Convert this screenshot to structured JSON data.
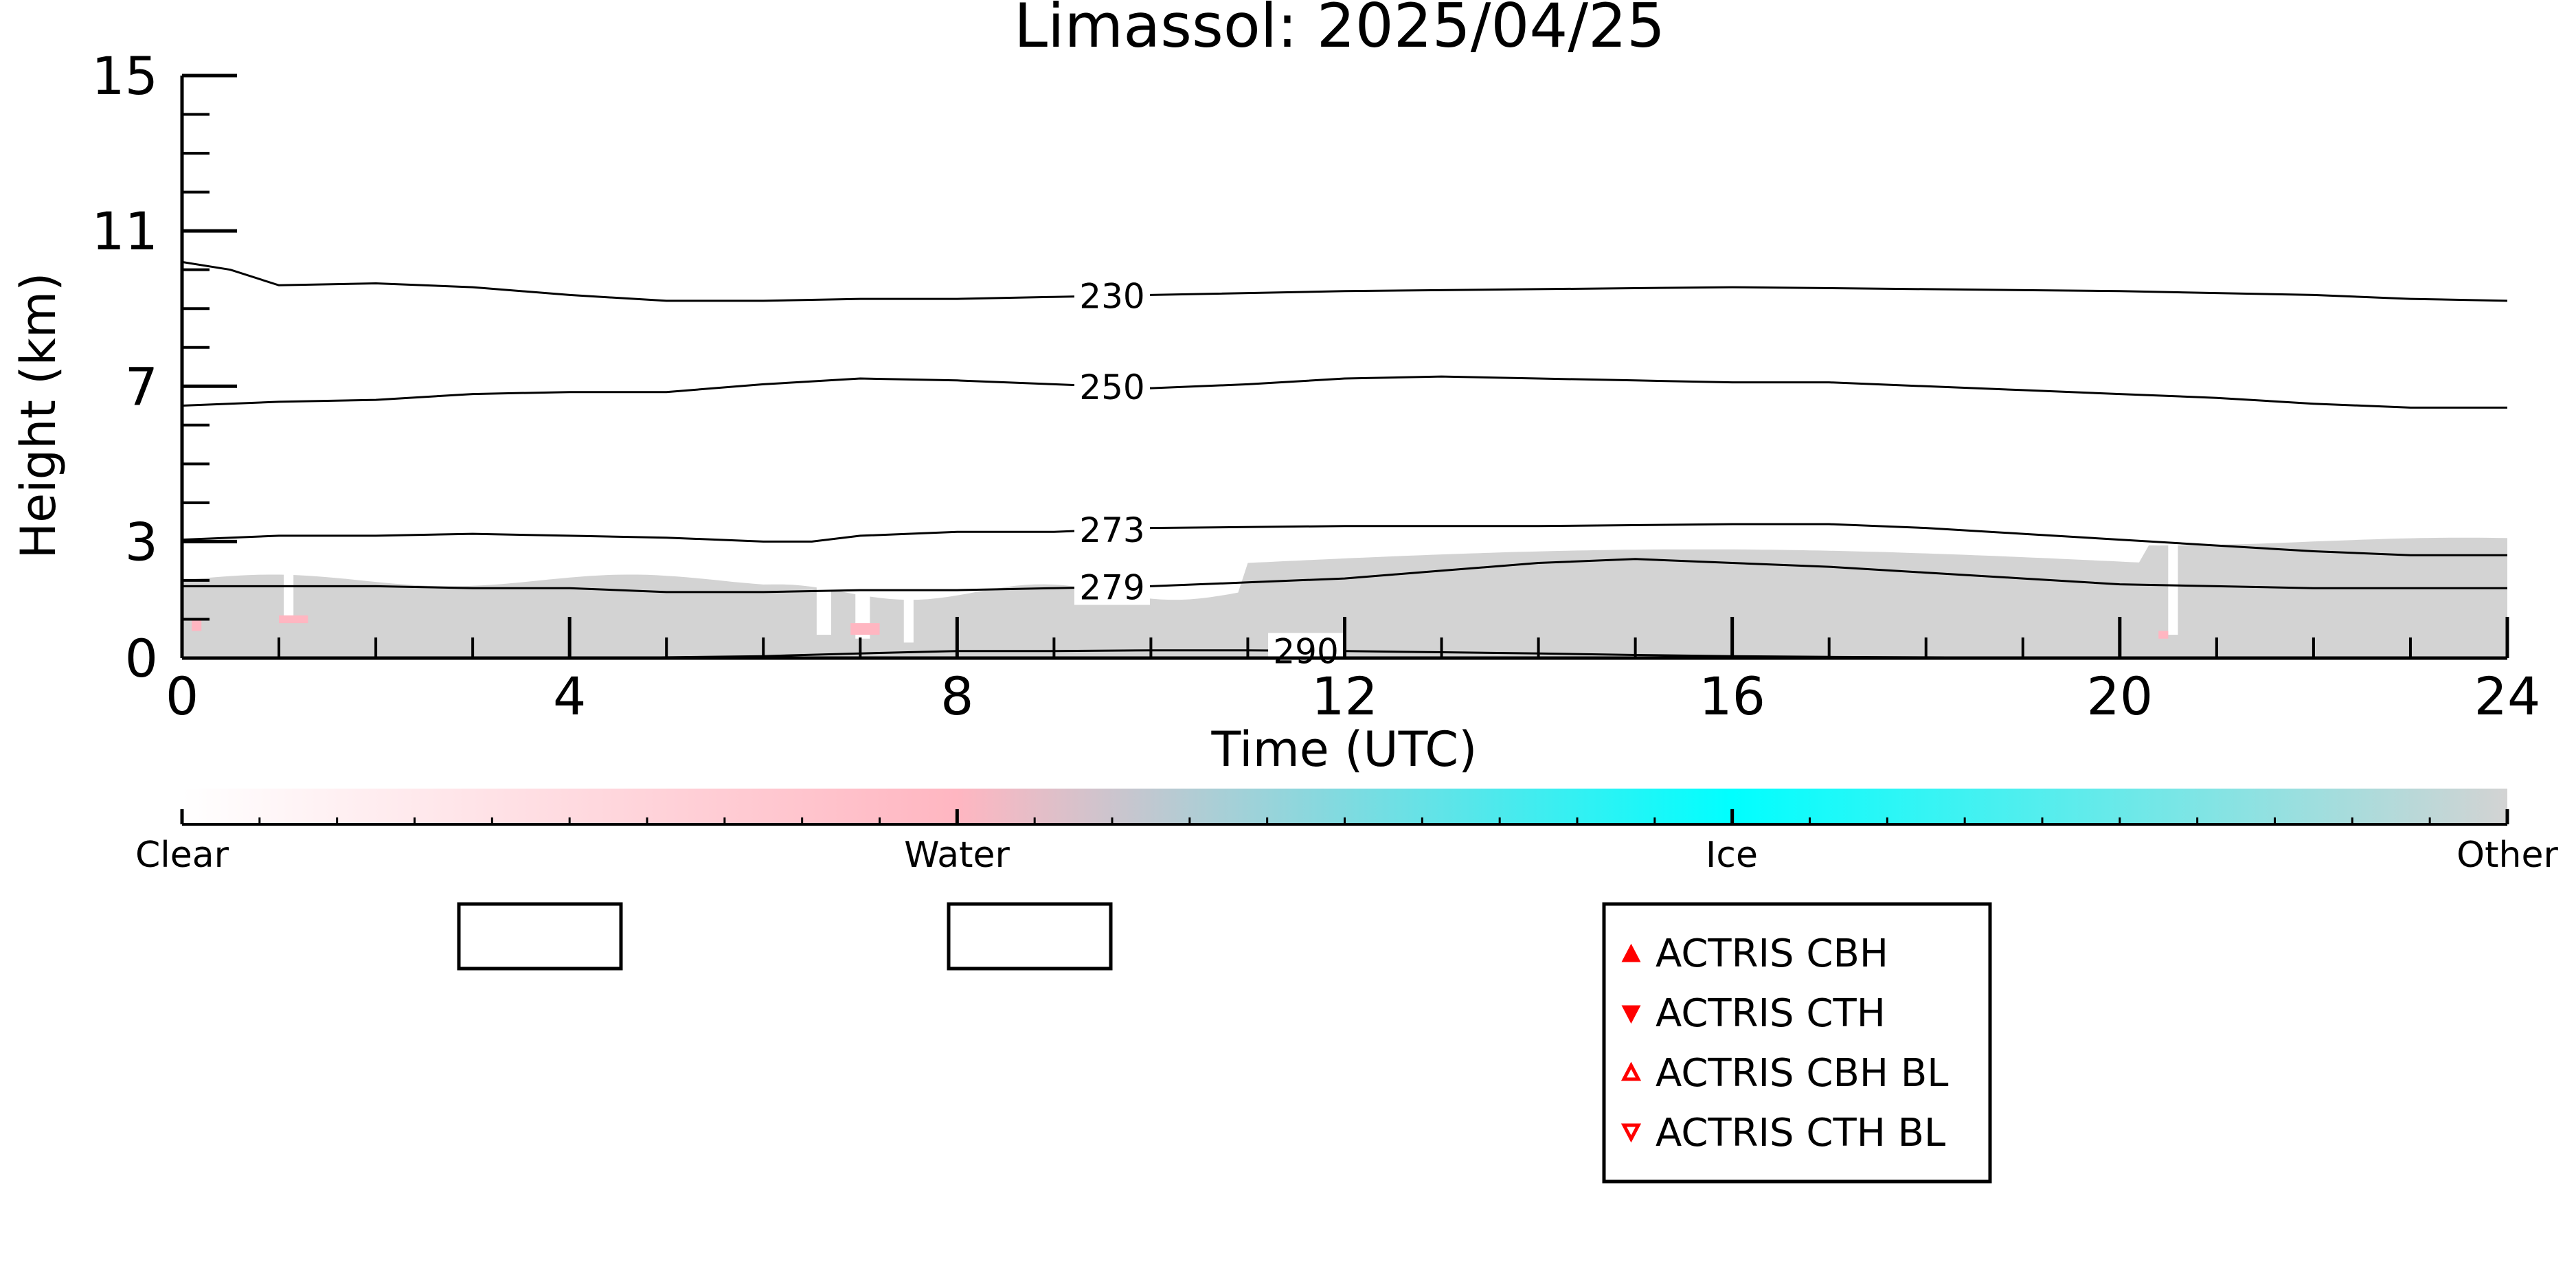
{
  "chart_data": {
    "type": "heatmap",
    "title": "Limassol: 2025/04/25",
    "xlabel": "Time (UTC)",
    "ylabel": "Height (km)",
    "xlim": [
      0,
      24
    ],
    "ylim": [
      0,
      15
    ],
    "x_ticks": [
      0,
      4,
      8,
      12,
      16,
      20,
      24
    ],
    "y_ticks": [
      0,
      3,
      7,
      11,
      15
    ],
    "grid": false,
    "temperature_contours": [
      {
        "label": "230",
        "label_x": 9.6,
        "points": [
          [
            0,
            10.2
          ],
          [
            0.5,
            10.0
          ],
          [
            1,
            9.6
          ],
          [
            2,
            9.65
          ],
          [
            3,
            9.55
          ],
          [
            4,
            9.35
          ],
          [
            5,
            9.2
          ],
          [
            6,
            9.2
          ],
          [
            7,
            9.25
          ],
          [
            8,
            9.25
          ],
          [
            9,
            9.3
          ],
          [
            10,
            9.35
          ],
          [
            12,
            9.45
          ],
          [
            14,
            9.5
          ],
          [
            16,
            9.55
          ],
          [
            18,
            9.5
          ],
          [
            20,
            9.45
          ],
          [
            22,
            9.35
          ],
          [
            23,
            9.25
          ],
          [
            24,
            9.2
          ]
        ]
      },
      {
        "label": "250",
        "label_x": 9.6,
        "points": [
          [
            0,
            6.5
          ],
          [
            1,
            6.6
          ],
          [
            2,
            6.65
          ],
          [
            3,
            6.8
          ],
          [
            4,
            6.85
          ],
          [
            5,
            6.85
          ],
          [
            6,
            7.05
          ],
          [
            7,
            7.2
          ],
          [
            8,
            7.15
          ],
          [
            9,
            7.05
          ],
          [
            10,
            6.95
          ],
          [
            11,
            7.05
          ],
          [
            12,
            7.2
          ],
          [
            13,
            7.25
          ],
          [
            14,
            7.2
          ],
          [
            15,
            7.15
          ],
          [
            16,
            7.1
          ],
          [
            17,
            7.1
          ],
          [
            18,
            7.0
          ],
          [
            19,
            6.9
          ],
          [
            20,
            6.8
          ],
          [
            21,
            6.7
          ],
          [
            22,
            6.55
          ],
          [
            23,
            6.45
          ],
          [
            24,
            6.45
          ]
        ]
      },
      {
        "label": "273",
        "label_x": 9.6,
        "points": [
          [
            0,
            3.05
          ],
          [
            1,
            3.15
          ],
          [
            2,
            3.15
          ],
          [
            3,
            3.2
          ],
          [
            4,
            3.15
          ],
          [
            5,
            3.1
          ],
          [
            6,
            3.0
          ],
          [
            6.5,
            3.0
          ],
          [
            7,
            3.15
          ],
          [
            8,
            3.25
          ],
          [
            9,
            3.25
          ],
          [
            10,
            3.35
          ],
          [
            12,
            3.4
          ],
          [
            14,
            3.4
          ],
          [
            16,
            3.45
          ],
          [
            17,
            3.45
          ],
          [
            18,
            3.35
          ],
          [
            19,
            3.2
          ],
          [
            20,
            3.05
          ],
          [
            21,
            2.9
          ],
          [
            22,
            2.75
          ],
          [
            23,
            2.65
          ],
          [
            24,
            2.65
          ]
        ]
      },
      {
        "label": "279",
        "label_x": 9.6,
        "points": [
          [
            0,
            1.85
          ],
          [
            1,
            1.85
          ],
          [
            2,
            1.85
          ],
          [
            3,
            1.8
          ],
          [
            4,
            1.8
          ],
          [
            5,
            1.7
          ],
          [
            6,
            1.7
          ],
          [
            7,
            1.75
          ],
          [
            8,
            1.75
          ],
          [
            9,
            1.8
          ],
          [
            10,
            1.85
          ],
          [
            11,
            1.95
          ],
          [
            12,
            2.05
          ],
          [
            13,
            2.25
          ],
          [
            14,
            2.45
          ],
          [
            15,
            2.55
          ],
          [
            16,
            2.45
          ],
          [
            17,
            2.35
          ],
          [
            18,
            2.2
          ],
          [
            19,
            2.05
          ],
          [
            20,
            1.9
          ],
          [
            21,
            1.85
          ],
          [
            22,
            1.8
          ],
          [
            23,
            1.8
          ],
          [
            24,
            1.8
          ]
        ]
      },
      {
        "label": "290",
        "label_x": 11.6,
        "points": [
          [
            4.5,
            0.0
          ],
          [
            5,
            0.02
          ],
          [
            6,
            0.05
          ],
          [
            7,
            0.12
          ],
          [
            8,
            0.18
          ],
          [
            9,
            0.18
          ],
          [
            10,
            0.2
          ],
          [
            11,
            0.2
          ],
          [
            12,
            0.18
          ],
          [
            13,
            0.15
          ],
          [
            14,
            0.12
          ],
          [
            15,
            0.08
          ],
          [
            16,
            0.05
          ],
          [
            17,
            0.03
          ],
          [
            18,
            0.02
          ],
          [
            20,
            0.0
          ]
        ]
      }
    ],
    "colorbar": {
      "labels": [
        "Clear",
        "Water",
        "Ice",
        "Other"
      ],
      "colors": [
        "#ffffff",
        "#ffb6c1",
        "#00ffff",
        "#d3d3d3"
      ]
    },
    "legend": {
      "placement": "bottom-center",
      "entries": [
        {
          "label": "ACTRIS CBH",
          "marker": "triangle-up-filled",
          "color": "#ff0000"
        },
        {
          "label": "ACTRIS CTH",
          "marker": "triangle-down-filled",
          "color": "#ff0000"
        },
        {
          "label": "ACTRIS CBH BL",
          "marker": "triangle-up-open",
          "color": "#ff0000"
        },
        {
          "label": "ACTRIS CTH BL",
          "marker": "triangle-down-open",
          "color": "#ff0000"
        }
      ]
    },
    "empty_legend_boxes": 2,
    "field_colors": {
      "other": "#d3d3d3",
      "water": "#ffb6c1"
    }
  }
}
